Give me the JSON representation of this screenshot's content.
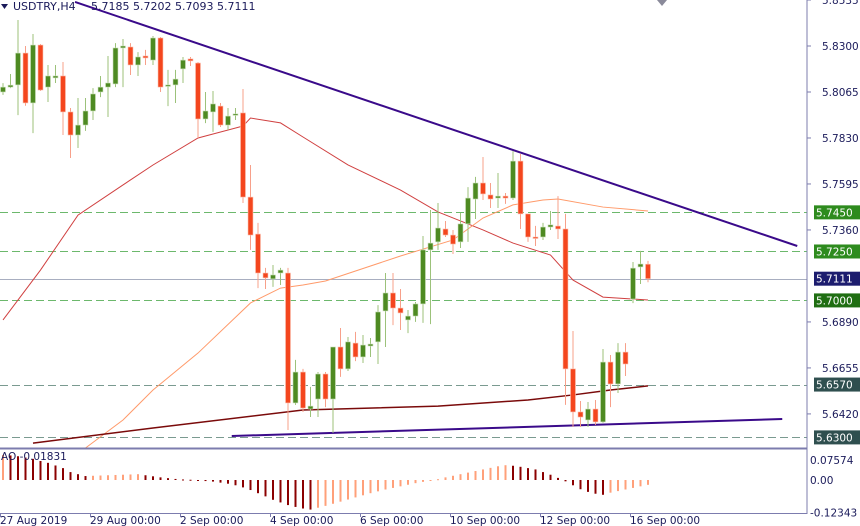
{
  "header": {
    "symbol": "USDTRY,H4",
    "ohlc": "5.7185 5.7202 5.7093 5.7111"
  },
  "ao_label": "AO -0.01831",
  "chart_data": {
    "type": "candlestick",
    "symbol": "USDTRY",
    "timeframe": "H4",
    "price_axis": {
      "ticks": [
        "5.8535",
        "5.8300",
        "5.8065",
        "5.7830",
        "5.7595",
        "5.7360",
        "5.6890",
        "5.6655",
        "5.6420"
      ],
      "tick_values": [
        5.8535,
        5.83,
        5.8065,
        5.783,
        5.7595,
        5.736,
        5.689,
        5.6655,
        5.642
      ]
    },
    "time_axis": {
      "ticks": [
        "27 Aug 2019",
        "29 Aug 00:00",
        "2 Sep 00:00",
        "4 Sep 00:00",
        "6 Sep 00:00",
        "10 Sep 00:00",
        "12 Sep 00:00",
        "16 Sep 00:00"
      ],
      "tick_bars": [
        0,
        12,
        24,
        36,
        48,
        60,
        72,
        84
      ]
    },
    "levels": [
      {
        "label": "5.7450",
        "value": 5.745,
        "color": "#2e8b1e",
        "style": "dashed"
      },
      {
        "label": "5.7250",
        "value": 5.725,
        "color": "#2e8b1e",
        "style": "dashed"
      },
      {
        "label": "5.7111",
        "value": 5.7111,
        "color": "#1c1c6e",
        "style": "solid"
      },
      {
        "label": "5.7000",
        "value": 5.7,
        "color": "#1f6e12",
        "style": "dashed"
      },
      {
        "label": "5.6570",
        "value": 5.657,
        "color": "#2f4f4f",
        "style": "dashed"
      },
      {
        "label": "5.6300",
        "value": 5.63,
        "color": "#2f4f4f",
        "style": "dashed"
      }
    ],
    "colors": {
      "bull": "#4e8a22",
      "bear": "#f4461e",
      "ma_fast": "#d04040",
      "ma_mid": "#ff9a6a",
      "ma_slow": "#7a0a0a",
      "trendline": "#3a0a8a",
      "ao_up": "#ffa07a",
      "ao_down": "#8b0000"
    },
    "candles": [
      [
        5.8065,
        5.811,
        5.805,
        5.809
      ],
      [
        5.809,
        5.8157,
        5.8085,
        5.81
      ],
      [
        5.8101,
        5.8433,
        5.7947,
        5.8264
      ],
      [
        5.8264,
        5.83,
        5.7995,
        5.8009
      ],
      [
        5.8009,
        5.8361,
        5.7855,
        5.8305
      ],
      [
        5.8305,
        5.831,
        5.807,
        5.8075
      ],
      [
        5.809,
        5.8203,
        5.8014,
        5.8147
      ],
      [
        5.8137,
        5.8203,
        5.8111,
        5.8147
      ],
      [
        5.8147,
        5.8218,
        5.7845,
        5.7963
      ],
      [
        5.7963,
        5.7983,
        5.7728,
        5.7845
      ],
      [
        5.7845,
        5.8034,
        5.7779,
        5.7896
      ],
      [
        5.7896,
        5.8034,
        5.7866,
        5.7968
      ],
      [
        5.7968,
        5.8085,
        5.7922,
        5.8055
      ],
      [
        5.8065,
        5.8147,
        5.8039,
        5.809
      ],
      [
        5.809,
        5.8249,
        5.7937,
        5.8111
      ],
      [
        5.8106,
        5.8315,
        5.809,
        5.829
      ],
      [
        5.829,
        5.8336,
        5.809,
        5.83
      ],
      [
        5.8295,
        5.8315,
        5.8152,
        5.8203
      ],
      [
        5.8203,
        5.8269,
        5.8147,
        5.8244
      ],
      [
        5.8249,
        5.828,
        5.8203,
        5.8239
      ],
      [
        5.8228,
        5.8351,
        5.8203,
        5.8341
      ],
      [
        5.8341,
        5.8346,
        5.8065,
        5.809
      ],
      [
        5.8095,
        5.8178,
        5.7993,
        5.8101
      ],
      [
        5.8101,
        5.8178,
        5.8009,
        5.8131
      ],
      [
        5.8183,
        5.8244,
        5.8111,
        5.8228
      ],
      [
        5.8234,
        5.8244,
        5.8198,
        5.8224
      ],
      [
        5.8213,
        5.8218,
        5.783,
        5.7927
      ],
      [
        5.7927,
        5.8065,
        5.7906,
        5.7968
      ],
      [
        5.7963,
        5.807,
        5.7861,
        5.8004
      ],
      [
        5.7993,
        5.8009,
        5.7886,
        5.7896
      ],
      [
        5.7896,
        5.7983,
        5.7871,
        5.7942
      ],
      [
        5.7947,
        5.7983,
        5.7922,
        5.7953
      ],
      [
        5.7958,
        5.808,
        5.7498,
        5.7528
      ],
      [
        5.7528,
        5.7692,
        5.7258,
        5.7334
      ],
      [
        5.7339,
        5.7396,
        5.7063,
        5.714
      ],
      [
        5.714,
        5.7166,
        5.7058,
        5.7115
      ],
      [
        5.711,
        5.7181,
        5.7069,
        5.713
      ],
      [
        5.714,
        5.7166,
        5.7079,
        5.7155
      ],
      [
        5.714,
        5.7166,
        5.6338,
        5.6476
      ],
      [
        5.6476,
        5.6696,
        5.6466,
        5.6634
      ],
      [
        5.6634,
        5.665,
        5.643,
        5.645
      ],
      [
        5.6445,
        5.6558,
        5.6404,
        5.646
      ],
      [
        5.6496,
        5.6634,
        5.6404,
        5.6624
      ],
      [
        5.6624,
        5.6634,
        5.6455,
        5.6496
      ],
      [
        5.6496,
        5.6762,
        5.6323,
        5.6762
      ],
      [
        5.6762,
        5.6859,
        5.6609,
        5.665
      ],
      [
        5.665,
        5.6813,
        5.6639,
        5.6788
      ],
      [
        5.6782,
        5.6839,
        5.669,
        5.6711
      ],
      [
        5.6711,
        5.6823,
        5.668,
        5.6772
      ],
      [
        5.6767,
        5.6808,
        5.6711,
        5.6777
      ],
      [
        5.6788,
        5.6976,
        5.6675,
        5.6941
      ],
      [
        5.6946,
        5.714,
        5.6762,
        5.7038
      ],
      [
        5.7038,
        5.714,
        5.6874,
        5.6961
      ],
      [
        5.6961,
        5.7058,
        5.6849,
        5.6936
      ],
      [
        5.69,
        5.6951,
        5.6833,
        5.692
      ],
      [
        5.692,
        5.6992,
        5.689,
        5.6982
      ],
      [
        5.6982,
        5.7329,
        5.6885,
        5.7258
      ],
      [
        5.7258,
        5.7462,
        5.6879,
        5.7293
      ],
      [
        5.7299,
        5.7498,
        5.7258,
        5.737
      ],
      [
        5.7365,
        5.7406,
        5.7324,
        5.7334
      ],
      [
        5.7334,
        5.736,
        5.7237,
        5.7288
      ],
      [
        5.7299,
        5.7447,
        5.7268,
        5.7391
      ],
      [
        5.7391,
        5.7579,
        5.7299,
        5.7523
      ],
      [
        5.7518,
        5.7631,
        5.7416,
        5.76
      ],
      [
        5.76,
        5.7733,
        5.7513,
        5.7544
      ],
      [
        5.7539,
        5.76,
        5.7472,
        5.7518
      ],
      [
        5.7523,
        5.7651,
        5.7472,
        5.7533
      ],
      [
        5.7533,
        5.7549,
        5.7493,
        5.7523
      ],
      [
        5.7523,
        5.7763,
        5.7513,
        5.7712
      ],
      [
        5.7712,
        5.7748,
        5.7365,
        5.7442
      ],
      [
        5.7442,
        5.7442,
        5.7299,
        5.7324
      ],
      [
        5.7324,
        5.7381,
        5.7278,
        5.7319
      ],
      [
        5.7324,
        5.7396,
        5.7309,
        5.7375
      ],
      [
        5.7375,
        5.7457,
        5.736,
        5.7386
      ],
      [
        5.738,
        5.7533,
        5.7314,
        5.7365
      ],
      [
        5.7365,
        5.7442,
        5.6466,
        5.665
      ],
      [
        5.665,
        5.6844,
        5.6353,
        5.643
      ],
      [
        5.643,
        5.6486,
        5.6353,
        5.6404
      ],
      [
        5.6389,
        5.6481,
        5.6353,
        5.6445
      ],
      [
        5.6445,
        5.6491,
        5.6364,
        5.6379
      ],
      [
        5.6379,
        5.6752,
        5.6374,
        5.6685
      ],
      [
        5.6685,
        5.6721,
        5.6455,
        5.6573
      ],
      [
        5.6573,
        5.6782,
        5.6527,
        5.6736
      ],
      [
        5.6736,
        5.6782,
        5.6614,
        5.6675
      ],
      [
        5.7007,
        5.7196,
        5.6986,
        5.7165
      ],
      [
        5.7171,
        5.7253,
        5.7084,
        5.7186
      ],
      [
        5.7185,
        5.7202,
        5.7093,
        5.7111
      ]
    ],
    "candle_format": [
      "open",
      "high",
      "low",
      "close"
    ],
    "moving_averages": [
      {
        "color_key": "ma_fast",
        "points": [
          [
            0,
            5.69
          ],
          [
            5,
            5.7155
          ],
          [
            10,
            5.7436
          ],
          [
            16,
            5.759
          ],
          [
            20,
            5.7692
          ],
          [
            26,
            5.783
          ],
          [
            32,
            5.7891
          ],
          [
            33,
            5.7932
          ],
          [
            37,
            5.7907
          ],
          [
            40,
            5.7835
          ],
          [
            46,
            5.7692
          ],
          [
            53,
            5.7564
          ],
          [
            58,
            5.7452
          ],
          [
            64,
            5.736
          ],
          [
            68,
            5.7293
          ],
          [
            73,
            5.7232
          ],
          [
            76,
            5.7104
          ],
          [
            80,
            5.7017
          ],
          [
            86,
            5.7002
          ]
        ]
      },
      {
        "color_key": "ma_mid",
        "points": [
          [
            11,
            5.6246
          ],
          [
            16,
            5.6389
          ],
          [
            20,
            5.6542
          ],
          [
            26,
            5.6731
          ],
          [
            33,
            5.6987
          ],
          [
            37,
            5.7063
          ],
          [
            40,
            5.7079
          ],
          [
            43,
            5.7099
          ],
          [
            53,
            5.7227
          ],
          [
            60,
            5.7309
          ],
          [
            64,
            5.7421
          ],
          [
            68,
            5.7488
          ],
          [
            72,
            5.7513
          ],
          [
            74,
            5.7518
          ],
          [
            80,
            5.7477
          ],
          [
            86,
            5.7457
          ]
        ]
      },
      {
        "color_key": "ma_slow",
        "points": [
          [
            4,
            5.6271
          ],
          [
            20,
            5.6348
          ],
          [
            40,
            5.644
          ],
          [
            58,
            5.646
          ],
          [
            70,
            5.6491
          ],
          [
            76,
            5.6517
          ],
          [
            81,
            5.6542
          ],
          [
            86,
            5.6563
          ]
        ]
      }
    ],
    "trendlines": [
      [
        [
          9.6,
          5.8525
        ],
        [
          105.9,
          5.7278
        ]
      ],
      [
        [
          30.5,
          5.6307
        ],
        [
          103.9,
          5.6394
        ]
      ]
    ],
    "ao": {
      "name": "AO",
      "ticks": [
        "0.07574",
        "0.00",
        "-0.12343"
      ],
      "tick_values": [
        0.07574,
        0,
        -0.12343
      ],
      "values": [
        0.095,
        0.093,
        0.09,
        0.085,
        0.08,
        0.072,
        0.065,
        0.055,
        0.045,
        0.03,
        0.022,
        0.015,
        0.016,
        0.017,
        0.018,
        0.019,
        0.02,
        0.021,
        0.022,
        0.018,
        0.014,
        0.01,
        0.007,
        0.004,
        0.002,
        0.001,
        -0.002,
        -0.004,
        -0.006,
        -0.01,
        -0.014,
        -0.02,
        -0.028,
        -0.038,
        -0.05,
        -0.062,
        -0.075,
        -0.085,
        -0.095,
        -0.102,
        -0.108,
        -0.112,
        -0.105,
        -0.098,
        -0.09,
        -0.082,
        -0.074,
        -0.066,
        -0.058,
        -0.05,
        -0.043,
        -0.036,
        -0.03,
        -0.024,
        -0.018,
        -0.012,
        -0.007,
        -0.003,
        0.003,
        0.01,
        0.016,
        0.022,
        0.028,
        0.034,
        0.04,
        0.046,
        0.052,
        0.056,
        0.054,
        0.05,
        0.045,
        0.04,
        0.03,
        0.02,
        0.008,
        -0.005,
        -0.02,
        -0.035,
        -0.045,
        -0.052,
        -0.056,
        -0.048,
        -0.042,
        -0.036,
        -0.03,
        -0.024,
        -0.01831
      ]
    }
  }
}
